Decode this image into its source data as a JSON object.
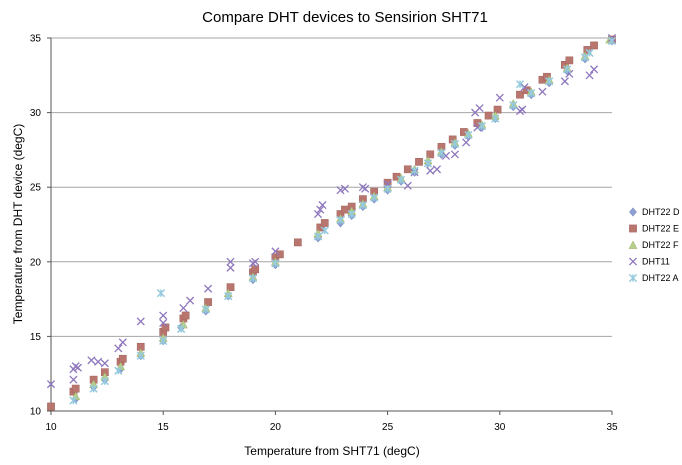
{
  "chart_data": {
    "type": "scatter",
    "title": "Compare DHT devices to Sensirion SHT71",
    "xlabel": "Temperature from SHT71 (degC)",
    "ylabel": "Temperature from DHT device (degC)",
    "xlim": [
      10,
      35
    ],
    "ylim": [
      10,
      35
    ],
    "x_ticks": [
      "10",
      "15",
      "20",
      "25",
      "30",
      "35"
    ],
    "y_ticks": [
      "10",
      "15",
      "20",
      "25",
      "30",
      "35"
    ],
    "grid": "horizontal",
    "legend_position": "right",
    "series": [
      {
        "name": "DHT22 D",
        "marker": "diamond",
        "color": "#8da0d4",
        "points": [
          [
            11.1,
            10.8
          ],
          [
            11.9,
            11.6
          ],
          [
            12.4,
            12.1
          ],
          [
            13.1,
            12.8
          ],
          [
            14.0,
            13.7
          ],
          [
            15.0,
            14.7
          ],
          [
            15.8,
            15.6
          ],
          [
            16.9,
            16.7
          ],
          [
            17.9,
            17.7
          ],
          [
            19.0,
            18.8
          ],
          [
            20.0,
            19.8
          ],
          [
            21.9,
            21.6
          ],
          [
            22.9,
            22.6
          ],
          [
            23.4,
            23.1
          ],
          [
            23.9,
            23.7
          ],
          [
            24.4,
            24.2
          ],
          [
            25.0,
            24.8
          ],
          [
            25.6,
            25.4
          ],
          [
            26.2,
            26.0
          ],
          [
            26.8,
            26.6
          ],
          [
            27.4,
            27.2
          ],
          [
            28.0,
            27.8
          ],
          [
            28.6,
            28.4
          ],
          [
            29.2,
            29.0
          ],
          [
            29.8,
            29.6
          ],
          [
            30.6,
            30.4
          ],
          [
            31.4,
            31.2
          ],
          [
            32.2,
            32.0
          ],
          [
            33.0,
            32.8
          ],
          [
            33.8,
            33.6
          ],
          [
            35.0,
            34.8
          ]
        ]
      },
      {
        "name": "DHT22 E",
        "marker": "square",
        "color": "#b9766f",
        "points": [
          [
            10.0,
            10.3
          ],
          [
            11.0,
            11.3
          ],
          [
            11.1,
            11.5
          ],
          [
            11.9,
            12.1
          ],
          [
            12.4,
            12.6
          ],
          [
            13.1,
            13.3
          ],
          [
            13.2,
            13.5
          ],
          [
            14.0,
            14.3
          ],
          [
            15.0,
            15.3
          ],
          [
            15.1,
            15.6
          ],
          [
            15.9,
            16.2
          ],
          [
            16.0,
            16.4
          ],
          [
            17.0,
            17.3
          ],
          [
            18.0,
            18.3
          ],
          [
            19.0,
            19.3
          ],
          [
            19.1,
            19.5
          ],
          [
            20.0,
            20.3
          ],
          [
            20.2,
            20.5
          ],
          [
            21.0,
            21.3
          ],
          [
            22.0,
            22.3
          ],
          [
            22.2,
            22.6
          ],
          [
            22.9,
            23.2
          ],
          [
            23.1,
            23.5
          ],
          [
            23.4,
            23.7
          ],
          [
            23.9,
            24.2
          ],
          [
            24.4,
            24.7
          ],
          [
            25.0,
            25.3
          ],
          [
            25.4,
            25.7
          ],
          [
            25.9,
            26.2
          ],
          [
            26.4,
            26.7
          ],
          [
            26.9,
            27.2
          ],
          [
            27.4,
            27.7
          ],
          [
            27.9,
            28.2
          ],
          [
            28.4,
            28.7
          ],
          [
            29.0,
            29.3
          ],
          [
            29.5,
            29.8
          ],
          [
            29.9,
            30.2
          ],
          [
            30.9,
            31.2
          ],
          [
            31.2,
            31.5
          ],
          [
            31.9,
            32.2
          ],
          [
            32.1,
            32.4
          ],
          [
            32.9,
            33.2
          ],
          [
            33.1,
            33.5
          ],
          [
            33.9,
            34.2
          ],
          [
            34.2,
            34.5
          ],
          [
            35.0,
            34.9
          ]
        ]
      },
      {
        "name": "DHT22 F",
        "marker": "triangle",
        "color": "#b7cf8a",
        "points": [
          [
            11.1,
            11.0
          ],
          [
            11.9,
            11.8
          ],
          [
            12.4,
            12.3
          ],
          [
            13.1,
            13.0
          ],
          [
            14.0,
            13.9
          ],
          [
            15.0,
            14.9
          ],
          [
            15.9,
            15.8
          ],
          [
            16.9,
            16.9
          ],
          [
            17.9,
            17.9
          ],
          [
            19.0,
            19.0
          ],
          [
            20.0,
            20.0
          ],
          [
            21.9,
            21.9
          ],
          [
            22.9,
            22.9
          ],
          [
            23.4,
            23.4
          ],
          [
            23.9,
            23.9
          ],
          [
            24.4,
            24.4
          ],
          [
            25.0,
            25.0
          ],
          [
            25.6,
            25.6
          ],
          [
            26.2,
            26.2
          ],
          [
            26.8,
            26.8
          ],
          [
            27.4,
            27.4
          ],
          [
            28.0,
            28.0
          ],
          [
            28.6,
            28.6
          ],
          [
            29.2,
            29.2
          ],
          [
            29.8,
            29.8
          ],
          [
            30.6,
            30.6
          ],
          [
            31.4,
            31.4
          ],
          [
            32.2,
            32.2
          ],
          [
            33.0,
            33.0
          ],
          [
            33.8,
            33.8
          ],
          [
            34.9,
            34.9
          ]
        ]
      },
      {
        "name": "DHT11",
        "marker": "x",
        "color": "#8e77bd",
        "points": [
          [
            10.0,
            11.8
          ],
          [
            11.0,
            12.1
          ],
          [
            11.0,
            12.8
          ],
          [
            11.2,
            12.9
          ],
          [
            11.1,
            13.0
          ],
          [
            11.8,
            13.4
          ],
          [
            12.1,
            13.3
          ],
          [
            12.4,
            13.2
          ],
          [
            13.0,
            14.2
          ],
          [
            13.2,
            14.6
          ],
          [
            14.0,
            16.0
          ],
          [
            15.0,
            15.9
          ],
          [
            15.0,
            16.4
          ],
          [
            15.9,
            16.9
          ],
          [
            16.2,
            17.4
          ],
          [
            17.0,
            18.2
          ],
          [
            18.0,
            19.6
          ],
          [
            18.0,
            20.0
          ],
          [
            19.0,
            19.9
          ],
          [
            19.1,
            20.0
          ],
          [
            20.0,
            20.7
          ],
          [
            21.9,
            23.2
          ],
          [
            22.0,
            23.5
          ],
          [
            22.1,
            23.8
          ],
          [
            22.9,
            24.8
          ],
          [
            23.1,
            24.9
          ],
          [
            23.9,
            25.0
          ],
          [
            24.0,
            24.9
          ],
          [
            25.0,
            25.2
          ],
          [
            25.9,
            25.1
          ],
          [
            26.2,
            26.0
          ],
          [
            26.9,
            26.1
          ],
          [
            27.2,
            26.2
          ],
          [
            27.6,
            27.1
          ],
          [
            28.0,
            27.2
          ],
          [
            28.5,
            28.0
          ],
          [
            29.0,
            29.0
          ],
          [
            28.9,
            30.0
          ],
          [
            29.1,
            30.3
          ],
          [
            30.0,
            31.0
          ],
          [
            30.9,
            30.1
          ],
          [
            31.0,
            30.2
          ],
          [
            31.1,
            31.7
          ],
          [
            31.9,
            31.4
          ],
          [
            32.9,
            32.1
          ],
          [
            33.1,
            32.6
          ],
          [
            34.0,
            32.5
          ],
          [
            34.2,
            32.9
          ],
          [
            35.0,
            35.0
          ]
        ]
      },
      {
        "name": "DHT22 A",
        "marker": "star",
        "color": "#94c9de",
        "points": [
          [
            11.0,
            10.7
          ],
          [
            11.9,
            11.5
          ],
          [
            12.4,
            12.0
          ],
          [
            13.0,
            12.7
          ],
          [
            14.0,
            13.7
          ],
          [
            15.0,
            14.7
          ],
          [
            14.9,
            17.9
          ],
          [
            15.8,
            15.5
          ],
          [
            16.9,
            16.8
          ],
          [
            17.9,
            17.7
          ],
          [
            19.0,
            18.9
          ],
          [
            20.0,
            19.9
          ],
          [
            21.9,
            21.7
          ],
          [
            22.2,
            22.1
          ],
          [
            22.9,
            22.8
          ],
          [
            23.4,
            23.2
          ],
          [
            23.9,
            23.8
          ],
          [
            24.4,
            24.3
          ],
          [
            25.0,
            24.9
          ],
          [
            25.6,
            25.5
          ],
          [
            26.2,
            26.1
          ],
          [
            26.8,
            26.6
          ],
          [
            27.4,
            27.3
          ],
          [
            28.0,
            27.9
          ],
          [
            28.6,
            28.5
          ],
          [
            29.2,
            29.1
          ],
          [
            29.8,
            29.6
          ],
          [
            30.6,
            30.5
          ],
          [
            30.9,
            31.9
          ],
          [
            31.4,
            31.3
          ],
          [
            32.2,
            32.1
          ],
          [
            33.0,
            32.9
          ],
          [
            33.8,
            33.7
          ],
          [
            34.0,
            34.0
          ],
          [
            35.0,
            34.8
          ]
        ]
      }
    ]
  }
}
